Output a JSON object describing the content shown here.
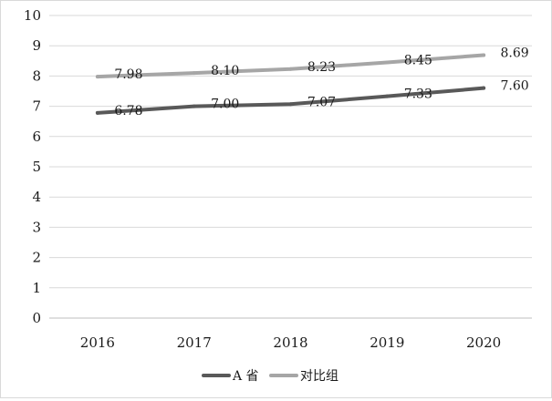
{
  "chart_data": {
    "type": "line",
    "title": "",
    "xlabel": "",
    "ylabel": "",
    "categories": [
      "2016",
      "2017",
      "2018",
      "2019",
      "2020"
    ],
    "ylim": [
      0,
      10
    ],
    "yticks": [
      "0",
      "1",
      "2",
      "3",
      "4",
      "5",
      "6",
      "7",
      "8",
      "9",
      "10"
    ],
    "grid": true,
    "legend_position": "bottom",
    "series": [
      {
        "name": "A 省",
        "values": [
          6.78,
          7.0,
          7.07,
          7.33,
          7.6
        ],
        "labels": [
          "6.78",
          "7.00",
          "7.07",
          "7.33",
          "7.60"
        ],
        "color": "#595959"
      },
      {
        "name": "对比组",
        "values": [
          7.98,
          8.1,
          8.23,
          8.45,
          8.69
        ],
        "labels": [
          "7.98",
          "8.10",
          "8.23",
          "8.45",
          "8.69"
        ],
        "color": "#a6a6a6"
      }
    ]
  }
}
